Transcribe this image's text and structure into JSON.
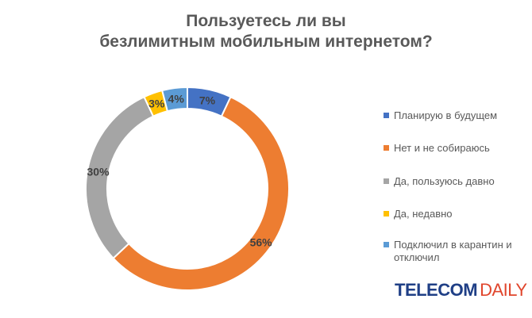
{
  "chart_data": {
    "type": "pie",
    "variant": "donut",
    "title_lines": [
      "Пользуетесь ли вы",
      "безлимитным мобильным интернетом?"
    ],
    "series": [
      {
        "name": "Планирую в будущем",
        "value": 7,
        "label": "7%",
        "color": "#4472c4"
      },
      {
        "name": "Нет и не собираюсь",
        "value": 56,
        "label": "56%",
        "color": "#ed7d31"
      },
      {
        "name": "Да, пользуюсь давно",
        "value": 30,
        "label": "30%",
        "color": "#a5a5a5"
      },
      {
        "name": "Да, недавно",
        "value": 3,
        "label": "3%",
        "color": "#ffc000"
      },
      {
        "name": "Подключил в карантин и отключил",
        "value": 4,
        "label": "4%",
        "color": "#5b9bd5"
      }
    ],
    "legend_position": "right"
  },
  "logo": {
    "part1": "TELECOM",
    "part2": "DAILY",
    "color1": "#1f3f86",
    "color2": "#e0452c"
  }
}
